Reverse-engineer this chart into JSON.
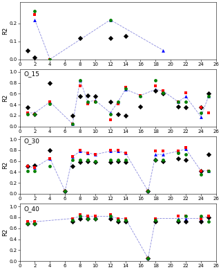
{
  "panels": [
    {
      "label": "",
      "show_label": false,
      "ylim": [
        0.0,
        0.32
      ],
      "yticks": [
        0.0,
        0.1,
        0.2
      ],
      "black_x": [
        1,
        2,
        8,
        12,
        14
      ],
      "black_y": [
        0.05,
        0.01,
        0.12,
        0.12,
        0.13
      ],
      "blue_x": [
        2,
        4,
        12,
        19
      ],
      "blue_y": [
        0.22,
        0.0,
        0.22,
        0.05
      ],
      "red_x": [
        2,
        4
      ],
      "red_y": [
        0.25,
        0.0
      ],
      "green_x": [
        2,
        4,
        12
      ],
      "green_y": [
        0.27,
        0.0,
        0.22
      ],
      "line_x": [
        2,
        4,
        12,
        19
      ],
      "line_y": [
        0.22,
        0.0,
        0.22,
        0.05
      ]
    },
    {
      "label": "O_15",
      "show_label": true,
      "ylim": [
        0.0,
        1.05
      ],
      "yticks": [
        0.0,
        0.2,
        0.4,
        0.6,
        0.8,
        1.0
      ],
      "black_x": [
        1,
        2,
        4,
        7,
        8,
        9,
        10,
        12,
        13,
        14,
        16,
        18,
        19,
        21,
        22,
        24,
        25
      ],
      "black_y": [
        0.35,
        0.22,
        0.8,
        0.2,
        0.55,
        0.57,
        0.55,
        0.45,
        0.22,
        0.2,
        0.37,
        0.65,
        0.6,
        0.37,
        0.35,
        0.35,
        0.6
      ],
      "blue_x": [
        1,
        2,
        4,
        7,
        8,
        9,
        10,
        12,
        13,
        14,
        16,
        18,
        19,
        21,
        22,
        24,
        25
      ],
      "blue_y": [
        0.25,
        0.25,
        0.45,
        0.05,
        0.85,
        0.45,
        0.48,
        0.25,
        0.45,
        0.68,
        0.57,
        0.68,
        0.65,
        0.45,
        0.55,
        0.18,
        0.55
      ],
      "red_x": [
        1,
        2,
        4,
        7,
        8,
        9,
        10,
        12,
        13,
        14,
        16,
        18,
        19,
        21,
        22,
        24,
        25
      ],
      "red_y": [
        0.25,
        0.22,
        0.45,
        0.05,
        0.75,
        0.42,
        0.45,
        0.12,
        0.42,
        0.72,
        0.57,
        0.75,
        0.65,
        0.45,
        0.62,
        0.35,
        0.25
      ],
      "green_x": [
        1,
        2,
        4,
        7,
        8,
        9,
        10,
        12,
        13,
        14,
        16,
        18,
        19,
        21,
        22,
        24,
        25
      ],
      "green_y": [
        0.22,
        0.22,
        0.42,
        0.05,
        0.85,
        0.45,
        0.45,
        0.22,
        0.45,
        0.7,
        0.55,
        0.85,
        0.62,
        0.45,
        0.45,
        0.25,
        0.55
      ],
      "line_x": [
        1,
        2,
        4,
        7,
        8,
        9,
        10,
        12,
        13,
        14,
        16,
        18,
        19,
        21,
        22,
        24,
        25
      ],
      "line_y": [
        0.25,
        0.25,
        0.45,
        0.05,
        0.85,
        0.45,
        0.48,
        0.25,
        0.45,
        0.68,
        0.57,
        0.68,
        0.65,
        0.45,
        0.55,
        0.18,
        0.55
      ]
    },
    {
      "label": "O_30",
      "show_label": true,
      "ylim": [
        0.0,
        1.05
      ],
      "yticks": [
        0.0,
        0.2,
        0.4,
        0.6,
        0.8,
        1.0
      ],
      "black_x": [
        1,
        2,
        4,
        6,
        7,
        8,
        9,
        10,
        12,
        13,
        14,
        17,
        18,
        19,
        21,
        22,
        24,
        25
      ],
      "black_y": [
        0.5,
        0.52,
        0.8,
        0.05,
        0.5,
        0.58,
        0.6,
        0.58,
        0.58,
        0.6,
        0.58,
        0.05,
        0.62,
        0.6,
        0.65,
        0.62,
        0.42,
        0.72
      ],
      "blue_x": [
        1,
        2,
        4,
        6,
        7,
        8,
        9,
        10,
        12,
        13,
        14,
        17,
        18,
        19,
        21,
        22,
        24,
        25
      ],
      "blue_y": [
        0.5,
        0.48,
        0.65,
        0.05,
        0.68,
        0.78,
        0.75,
        0.72,
        0.78,
        0.78,
        0.75,
        0.05,
        0.72,
        0.72,
        0.78,
        0.82,
        0.42,
        0.42
      ],
      "red_x": [
        1,
        2,
        4,
        6,
        7,
        8,
        9,
        10,
        12,
        13,
        14,
        17,
        18,
        19,
        21,
        22,
        24,
        25
      ],
      "red_y": [
        0.5,
        0.48,
        0.65,
        0.05,
        0.68,
        0.8,
        0.75,
        0.72,
        0.8,
        0.8,
        0.75,
        0.05,
        0.78,
        0.78,
        0.78,
        0.85,
        0.42,
        0.42
      ],
      "green_x": [
        1,
        2,
        4,
        6,
        7,
        8,
        9,
        10,
        12,
        13,
        14,
        17,
        18,
        19,
        21,
        22,
        24,
        25
      ],
      "green_y": [
        0.42,
        0.42,
        0.5,
        0.05,
        0.62,
        0.62,
        0.62,
        0.6,
        0.62,
        0.62,
        0.62,
        0.05,
        0.62,
        0.62,
        0.75,
        0.72,
        0.35,
        0.42
      ],
      "line_x": [
        1,
        2,
        4,
        6,
        7,
        8,
        9,
        10,
        12,
        13,
        14,
        17,
        18,
        19,
        21,
        22,
        24,
        25
      ],
      "line_y": [
        0.5,
        0.48,
        0.65,
        0.05,
        0.68,
        0.78,
        0.75,
        0.72,
        0.78,
        0.78,
        0.75,
        0.05,
        0.72,
        0.72,
        0.78,
        0.82,
        0.42,
        0.42
      ]
    },
    {
      "label": "O_40",
      "show_label": true,
      "ylim": [
        0.0,
        1.05
      ],
      "yticks": [
        0.0,
        0.2,
        0.4,
        0.6,
        0.8,
        1.0
      ],
      "black_x": [
        1,
        2,
        7,
        8,
        9,
        10,
        12,
        13,
        14,
        17,
        18,
        21,
        22,
        24,
        25
      ],
      "black_y": [
        0.68,
        0.68,
        0.72,
        0.78,
        0.78,
        0.78,
        0.78,
        0.72,
        0.72,
        0.05,
        0.72,
        0.72,
        0.72,
        0.72,
        0.8
      ],
      "blue_x": [
        1,
        2,
        7,
        8,
        9,
        10,
        12,
        13,
        14,
        17,
        18,
        21,
        22,
        24,
        25
      ],
      "blue_y": [
        0.72,
        0.72,
        0.78,
        0.82,
        0.82,
        0.82,
        0.82,
        0.78,
        0.78,
        0.05,
        0.78,
        0.78,
        0.78,
        0.78,
        0.82
      ],
      "red_x": [
        1,
        2,
        7,
        8,
        9,
        10,
        12,
        13,
        14,
        17,
        18,
        21,
        22,
        24,
        25
      ],
      "red_y": [
        0.72,
        0.72,
        0.78,
        0.85,
        0.82,
        0.82,
        0.85,
        0.78,
        0.78,
        0.05,
        0.78,
        0.82,
        0.82,
        0.78,
        0.82
      ],
      "green_x": [
        1,
        2,
        7,
        8,
        9,
        10,
        12,
        13,
        14,
        17,
        18,
        21,
        22,
        24,
        25
      ],
      "green_y": [
        0.68,
        0.68,
        0.75,
        0.82,
        0.78,
        0.78,
        0.82,
        0.75,
        0.75,
        0.05,
        0.75,
        0.75,
        0.82,
        0.82,
        0.72
      ],
      "line_x": [
        1,
        2,
        7,
        8,
        9,
        10,
        12,
        13,
        14,
        17,
        18,
        21,
        22,
        24,
        25
      ],
      "line_y": [
        0.72,
        0.72,
        0.78,
        0.82,
        0.82,
        0.82,
        0.82,
        0.78,
        0.78,
        0.05,
        0.78,
        0.78,
        0.78,
        0.78,
        0.82
      ]
    }
  ],
  "xlim": [
    0,
    26
  ],
  "xticks": [
    0,
    2,
    4,
    6,
    8,
    10,
    12,
    14,
    16,
    18,
    20,
    22,
    24,
    26
  ],
  "ylabel": "R2",
  "line_color": "#8888dd",
  "line_style": "--",
  "line_width": 0.6,
  "tick_fontsize": 5.0,
  "label_fontsize": 6.0,
  "panel_label_fontsize": 6.5,
  "ms_black": 14,
  "ms_colored": 12
}
